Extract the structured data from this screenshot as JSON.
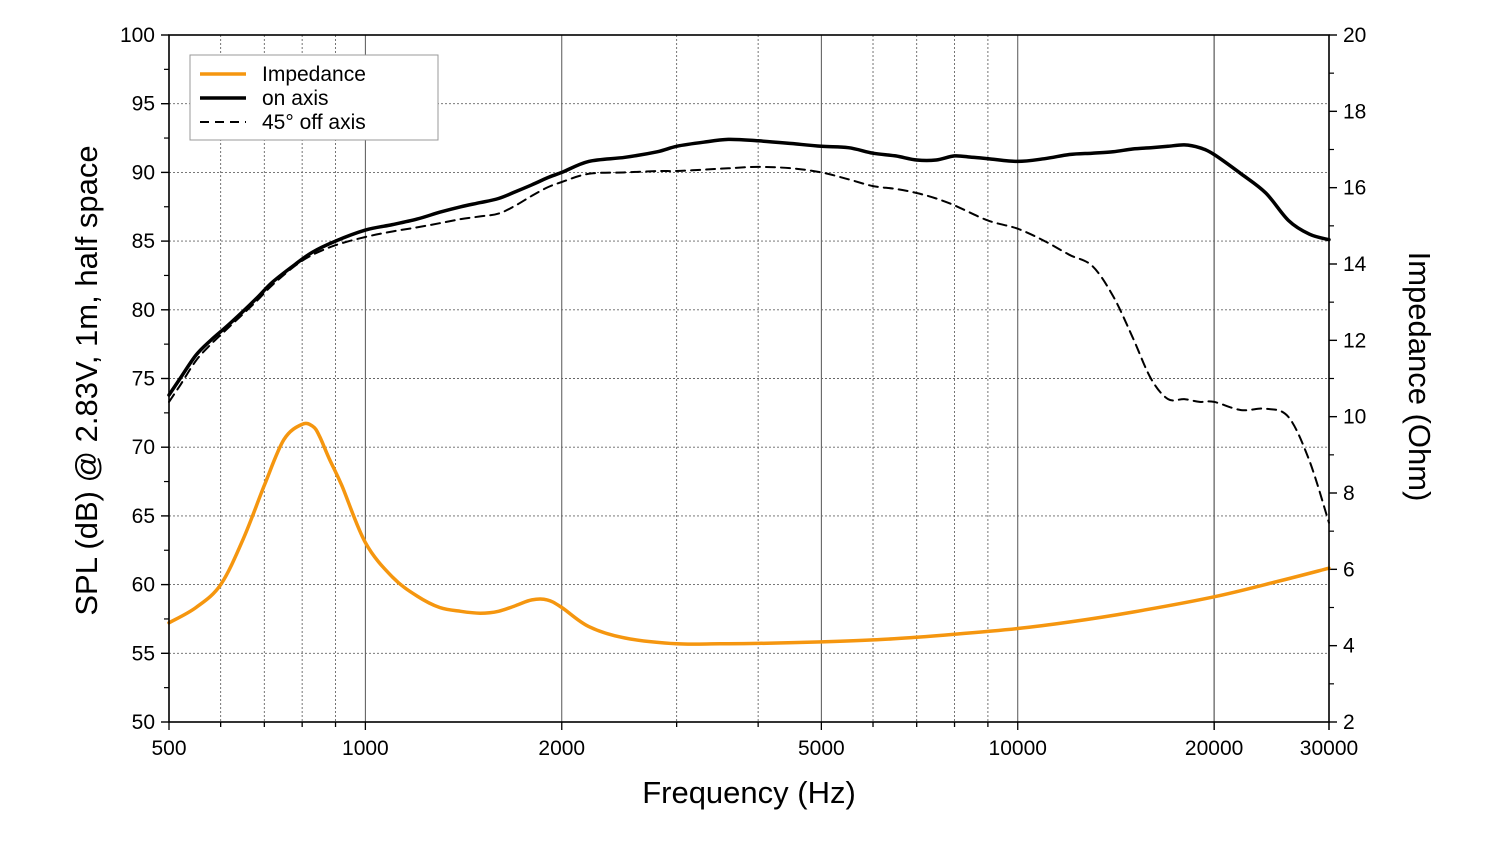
{
  "chart_data": {
    "type": "line",
    "xlabel": "Frequency (Hz)",
    "ylabel_left": "SPL (dB) @ 2.83V, 1m, half space",
    "ylabel_right": "Impedance (Ohm)",
    "x_scale": "log",
    "xlim": [
      500,
      30000
    ],
    "ylim_left": [
      50,
      100
    ],
    "ylim_right": [
      2,
      20
    ],
    "x_ticks": [
      500,
      1000,
      2000,
      5000,
      10000,
      20000,
      30000
    ],
    "x_tick_labels": [
      "500",
      "1000",
      "2000",
      "5000",
      "10000",
      "20000",
      "30000"
    ],
    "y_left_ticks": [
      50,
      55,
      60,
      65,
      70,
      75,
      80,
      85,
      90,
      95,
      100
    ],
    "y_left_tick_labels": [
      "50",
      "55",
      "60",
      "65",
      "70",
      "75",
      "80",
      "85",
      "90",
      "95",
      "100"
    ],
    "y_right_ticks": [
      2,
      4,
      6,
      8,
      10,
      12,
      14,
      16,
      18,
      20
    ],
    "y_right_tick_labels": [
      "2",
      "4",
      "6",
      "8",
      "10",
      "12",
      "14",
      "16",
      "18",
      "20"
    ],
    "grid": true,
    "legend_position": "top-left",
    "legend": [
      {
        "label": "Impedance",
        "color": "#f5960f",
        "style": "solid"
      },
      {
        "label": "on axis",
        "color": "#000000",
        "style": "solid"
      },
      {
        "label": "45° off axis",
        "color": "#000000",
        "style": "dashed"
      }
    ],
    "series": [
      {
        "name": "Impedance",
        "axis": "right",
        "color": "#f5960f",
        "style": "solid",
        "x": [
          500,
          550,
          600,
          650,
          700,
          750,
          800,
          830,
          850,
          880,
          920,
          1000,
          1100,
          1200,
          1300,
          1400,
          1500,
          1600,
          1700,
          1800,
          1900,
          2000,
          2200,
          2500,
          3000,
          3500,
          4000,
          5000,
          6000,
          7000,
          8000,
          10000,
          12000,
          15000,
          20000,
          25000,
          30000
        ],
        "y": [
          4.6,
          5.0,
          5.6,
          6.8,
          8.2,
          9.4,
          9.8,
          9.75,
          9.5,
          8.9,
          8.2,
          6.7,
          5.8,
          5.3,
          5.0,
          4.9,
          4.85,
          4.9,
          5.05,
          5.2,
          5.2,
          5.0,
          4.5,
          4.2,
          4.05,
          4.05,
          4.06,
          4.1,
          4.15,
          4.22,
          4.3,
          4.45,
          4.62,
          4.88,
          5.28,
          5.68,
          6.03
        ]
      },
      {
        "name": "on axis",
        "axis": "left",
        "color": "#000000",
        "style": "solid",
        "x": [
          500,
          520,
          550,
          580,
          620,
          680,
          720,
          780,
          830,
          900,
          1000,
          1100,
          1200,
          1300,
          1400,
          1500,
          1600,
          1700,
          1800,
          1900,
          2000,
          2200,
          2500,
          2800,
          3000,
          3300,
          3600,
          4000,
          4500,
          5000,
          5500,
          6000,
          6500,
          7000,
          7500,
          8000,
          8500,
          9000,
          10000,
          11000,
          12000,
          13000,
          14000,
          15000,
          16000,
          17000,
          18000,
          19000,
          20000,
          22000,
          24000,
          26000,
          28000,
          30000
        ],
        "y": [
          73.8,
          75.0,
          76.7,
          77.8,
          79.0,
          80.8,
          82.0,
          83.3,
          84.2,
          85.0,
          85.8,
          86.2,
          86.6,
          87.1,
          87.5,
          87.8,
          88.1,
          88.6,
          89.1,
          89.6,
          90.0,
          90.8,
          91.1,
          91.5,
          91.9,
          92.2,
          92.4,
          92.3,
          92.1,
          91.9,
          91.8,
          91.4,
          91.2,
          90.9,
          90.9,
          91.2,
          91.1,
          91.0,
          90.8,
          91.0,
          91.3,
          91.4,
          91.5,
          91.7,
          91.8,
          91.9,
          92.0,
          91.8,
          91.3,
          89.9,
          88.5,
          86.5,
          85.5,
          85.1
        ]
      },
      {
        "name": "45° off axis",
        "axis": "left",
        "color": "#000000",
        "style": "dashed",
        "x": [
          500,
          520,
          550,
          580,
          620,
          680,
          720,
          780,
          830,
          900,
          1000,
          1100,
          1200,
          1300,
          1400,
          1500,
          1600,
          1700,
          1800,
          1900,
          2000,
          2200,
          2500,
          2800,
          3000,
          3300,
          3600,
          4000,
          4500,
          5000,
          5500,
          6000,
          6500,
          7000,
          7500,
          8000,
          9000,
          10000,
          11000,
          12000,
          13000,
          14000,
          15000,
          16000,
          17000,
          18000,
          19000,
          20000,
          22000,
          24000,
          26000,
          28000,
          30000
        ],
        "y": [
          73.3,
          74.5,
          76.3,
          77.5,
          78.8,
          80.6,
          81.8,
          83.2,
          84.0,
          84.7,
          85.3,
          85.7,
          86.0,
          86.3,
          86.6,
          86.8,
          87.0,
          87.6,
          88.3,
          88.9,
          89.3,
          89.9,
          90.0,
          90.1,
          90.1,
          90.2,
          90.3,
          90.4,
          90.3,
          90.0,
          89.5,
          89.0,
          88.8,
          88.5,
          88.1,
          87.6,
          86.5,
          85.9,
          85.0,
          84.0,
          83.2,
          81.0,
          78.0,
          75.0,
          73.5,
          73.5,
          73.3,
          73.3,
          72.7,
          72.8,
          72.2,
          69.0,
          64.5
        ]
      }
    ]
  }
}
